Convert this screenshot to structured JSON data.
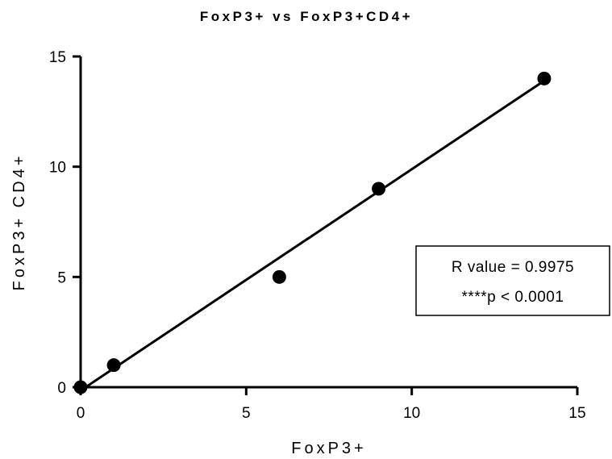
{
  "chart_data": {
    "type": "scatter",
    "title": "FoxP3+ vs FoxP3+CD4+",
    "xlabel": "FoxP3+",
    "ylabel": "FoxP3+ CD4+",
    "xlim": [
      0,
      15
    ],
    "ylim": [
      0,
      15
    ],
    "xticks": [
      "0",
      "5",
      "10",
      "15"
    ],
    "yticks": [
      "0",
      "5",
      "10",
      "15"
    ],
    "grid": false,
    "points": [
      {
        "x": 0,
        "y": 0
      },
      {
        "x": 1,
        "y": 1
      },
      {
        "x": 6,
        "y": 5
      },
      {
        "x": 9,
        "y": 9
      },
      {
        "x": 14,
        "y": 14
      }
    ],
    "fit_line": {
      "x_start": 0,
      "y_start": -0.15,
      "x_end": 14,
      "y_end": 13.9
    },
    "annotation": {
      "line1": "R value = 0.9975",
      "line2": "****p < 0.0001"
    }
  }
}
